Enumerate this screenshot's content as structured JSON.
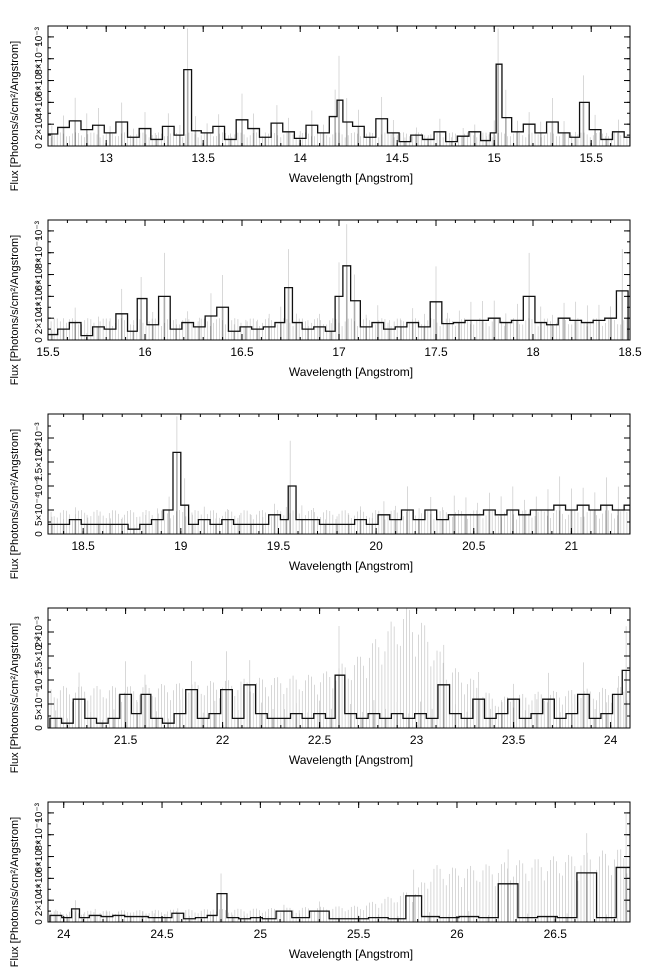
{
  "chart_data": [
    {
      "type": "line",
      "xlabel": "Wavelength [Angstrom]",
      "ylabel": "Flux [Photons/s/cm²/Angstrom]",
      "xlim": [
        12.7,
        15.7
      ],
      "ylim": [
        0,
        0.0011
      ],
      "xticks": [
        13,
        13.5,
        14,
        14.5,
        15,
        15.5
      ],
      "xtick_labels": [
        "13",
        "13.5",
        "14",
        "14.5",
        "15",
        "15.5"
      ],
      "yticks": [
        0,
        0.0002,
        0.0004,
        0.0006,
        0.0008,
        0.001
      ],
      "ytick_labels": [
        "0",
        "2×10⁻⁴",
        "4×10⁻⁴",
        "6×10⁻⁴",
        "8×10⁻⁴",
        "10⁻³"
      ],
      "background_error_level": 0.0001,
      "series": [
        {
          "x": [
            12.72,
            12.78,
            12.84,
            12.9,
            12.96,
            13.02,
            13.08,
            13.14,
            13.2,
            13.26,
            13.32,
            13.38,
            13.42,
            13.46,
            13.52,
            13.58,
            13.64,
            13.7,
            13.76,
            13.82,
            13.88,
            13.94,
            14.0,
            14.06,
            14.12,
            14.18,
            14.2,
            14.24,
            14.3,
            14.36,
            14.42,
            14.48,
            14.54,
            14.6,
            14.66,
            14.72,
            14.78,
            14.84,
            14.9,
            14.96,
            15.0,
            15.02,
            15.06,
            15.12,
            15.18,
            15.24,
            15.3,
            15.36,
            15.42,
            15.46,
            15.52,
            15.58,
            15.64,
            15.7
          ],
          "y": [
            0.00011,
            0.00017,
            0.00023,
            0.00015,
            0.00019,
            0.00012,
            0.00022,
            8e-05,
            0.00016,
            6e-05,
            0.00018,
            0.0001,
            0.0007,
            0.00014,
            0.00012,
            0.00018,
            6e-05,
            0.00024,
            0.00016,
            8e-05,
            0.00021,
            0.00013,
            7e-05,
            0.00019,
            0.00012,
            0.00027,
            0.00042,
            0.00022,
            0.00018,
            8e-05,
            0.00025,
            0.00012,
            4e-05,
            0.0001,
            6e-05,
            0.00013,
            4e-05,
            9e-05,
            0.00013,
            5e-05,
            0.00012,
            0.00075,
            0.00026,
            0.00013,
            0.0002,
            0.00012,
            0.00022,
            0.00012,
            8e-05,
            0.0004,
            0.00015,
            6e-05,
            0.00013,
            8e-05
          ]
        }
      ]
    },
    {
      "type": "line",
      "xlabel": "Wavelength [Angstrom]",
      "ylabel": "Flux [Photons/s/cm²/Angstrom]",
      "xlim": [
        15.5,
        18.5
      ],
      "ylim": [
        0,
        0.0011
      ],
      "xticks": [
        15.5,
        16,
        16.5,
        17,
        17.5,
        18,
        18.5
      ],
      "xtick_labels": [
        "15.5",
        "16",
        "16.5",
        "17",
        "17.5",
        "18",
        "18.5"
      ],
      "yticks": [
        0,
        0.0002,
        0.0004,
        0.0006,
        0.0008,
        0.001
      ],
      "ytick_labels": [
        "0",
        "2×10⁻⁴",
        "4×10⁻⁴",
        "6×10⁻⁴",
        "8×10⁻⁴",
        "10⁻³"
      ],
      "background_error_level": 0.00016,
      "series": [
        {
          "x": [
            15.52,
            15.58,
            15.64,
            15.7,
            15.76,
            15.82,
            15.88,
            15.94,
            15.98,
            16.04,
            16.1,
            16.16,
            16.22,
            16.28,
            16.34,
            16.4,
            16.46,
            16.52,
            16.58,
            16.64,
            16.7,
            16.74,
            16.78,
            16.84,
            16.9,
            16.96,
            17.0,
            17.04,
            17.08,
            17.14,
            17.2,
            17.26,
            17.32,
            17.38,
            17.44,
            17.5,
            17.56,
            17.62,
            17.68,
            17.74,
            17.8,
            17.86,
            17.92,
            17.98,
            18.04,
            18.1,
            18.16,
            18.22,
            18.28,
            18.34,
            18.4,
            18.46
          ],
          "y": [
            5e-05,
            0.0001,
            0.00016,
            4e-05,
            0.00012,
            0.0001,
            0.00024,
            8e-05,
            0.00038,
            0.00014,
            0.0004,
            0.0001,
            0.00016,
            0.00012,
            0.00022,
            0.0003,
            8e-05,
            0.00012,
            0.0001,
            0.00012,
            0.00016,
            0.00048,
            0.00016,
            0.0001,
            0.00012,
            8e-05,
            0.0004,
            0.00068,
            0.00036,
            0.00012,
            0.00016,
            0.0001,
            0.00012,
            0.00016,
            0.00012,
            0.00035,
            0.00015,
            0.00016,
            0.00018,
            0.00018,
            0.0002,
            0.00016,
            0.00018,
            0.0004,
            0.00016,
            0.00014,
            0.0002,
            0.00018,
            0.00016,
            0.00018,
            0.0002,
            0.00045
          ]
        }
      ]
    },
    {
      "type": "line",
      "xlabel": "Wavelength [Angstrom]",
      "ylabel": "Flux [Photons/s/cm²/Angstrom]",
      "xlim": [
        18.32,
        21.3
      ],
      "ylim": [
        0,
        0.0025
      ],
      "xticks": [
        18.5,
        19,
        19.5,
        20,
        20.5,
        21
      ],
      "xtick_labels": [
        "18.5",
        "19",
        "19.5",
        "20",
        "20.5",
        "21"
      ],
      "yticks": [
        0,
        0.0005,
        0.001,
        0.0015,
        0.002
      ],
      "ytick_labels": [
        "0",
        "5×10⁻⁴",
        "10⁻³",
        "1.5×10⁻³",
        "2×10⁻³"
      ],
      "background_error_level": 0.0004,
      "series": [
        {
          "x": [
            18.34,
            18.4,
            18.46,
            18.52,
            18.58,
            18.64,
            18.7,
            18.76,
            18.82,
            18.88,
            18.94,
            18.98,
            19.02,
            19.06,
            19.12,
            19.18,
            19.24,
            19.3,
            19.36,
            19.42,
            19.48,
            19.54,
            19.56,
            19.62,
            19.68,
            19.74,
            19.8,
            19.86,
            19.92,
            19.98,
            20.04,
            20.1,
            20.16,
            20.22,
            20.28,
            20.34,
            20.4,
            20.46,
            20.52,
            20.58,
            20.64,
            20.7,
            20.76,
            20.82,
            20.88,
            20.94,
            21.0,
            21.06,
            21.12,
            21.18,
            21.24,
            21.3
          ],
          "y": [
            0.0002,
            0.0002,
            0.0003,
            0.0002,
            0.0002,
            0.0002,
            0.0002,
            0.0001,
            0.0002,
            0.0003,
            0.0005,
            0.0017,
            0.0006,
            0.0002,
            0.0003,
            0.0002,
            0.0003,
            0.0002,
            0.0002,
            0.0002,
            0.0004,
            0.0003,
            0.001,
            0.0003,
            0.0003,
            0.0002,
            0.0002,
            0.0002,
            0.0003,
            0.0002,
            0.0004,
            0.0003,
            0.0005,
            0.0003,
            0.0005,
            0.0003,
            0.0004,
            0.0004,
            0.0004,
            0.0005,
            0.0004,
            0.0005,
            0.0004,
            0.0005,
            0.0005,
            0.0006,
            0.0005,
            0.0006,
            0.0005,
            0.0006,
            0.0005,
            0.0006
          ]
        }
      ]
    },
    {
      "type": "line",
      "xlabel": "Wavelength [Angstrom]",
      "ylabel": "Flux [Photons/s/cm²/Angstrom]",
      "xlim": [
        21.1,
        24.1
      ],
      "ylim": [
        0,
        0.0025
      ],
      "xticks": [
        21.5,
        22,
        22.5,
        23,
        23.5,
        24
      ],
      "xtick_labels": [
        "21.5",
        "22",
        "22.5",
        "23",
        "23.5",
        "24"
      ],
      "yticks": [
        0,
        0.0005,
        0.001,
        0.0015,
        0.002
      ],
      "ytick_labels": [
        "0",
        "5×10⁻⁴",
        "10⁻³",
        "1.5×10⁻³",
        "2×10⁻³"
      ],
      "background_error": {
        "x": [
          21.1,
          21.5,
          22.0,
          22.5,
          22.7,
          22.85,
          22.95,
          23.05,
          23.15,
          23.3,
          23.4,
          23.6,
          24.1
        ],
        "y": [
          0.0007,
          0.0007,
          0.0008,
          0.0009,
          0.0012,
          0.0017,
          0.0021,
          0.0017,
          0.0011,
          0.0008,
          0.0005,
          0.0006,
          0.0007
        ]
      },
      "series": [
        {
          "x": [
            21.14,
            21.2,
            21.26,
            21.32,
            21.38,
            21.44,
            21.5,
            21.56,
            21.6,
            21.66,
            21.72,
            21.78,
            21.84,
            21.9,
            21.96,
            22.02,
            22.08,
            22.14,
            22.2,
            22.26,
            22.32,
            22.38,
            22.44,
            22.5,
            22.56,
            22.6,
            22.66,
            22.72,
            22.78,
            22.84,
            22.9,
            22.96,
            23.02,
            23.08,
            23.14,
            23.2,
            23.26,
            23.32,
            23.38,
            23.44,
            23.5,
            23.56,
            23.62,
            23.68,
            23.74,
            23.8,
            23.86,
            23.92,
            23.98,
            24.04,
            24.08
          ],
          "y": [
            0.0002,
            0.0001,
            0.0006,
            0.0002,
            0.0001,
            0.0002,
            0.0007,
            0.0003,
            0.0007,
            0.0002,
            0.0001,
            0.0003,
            0.0008,
            0.0002,
            0.0003,
            0.0008,
            0.0002,
            0.0009,
            0.0003,
            0.0002,
            0.0002,
            0.0003,
            0.0002,
            0.0003,
            0.0002,
            0.0011,
            0.0003,
            0.0002,
            0.0003,
            0.0002,
            0.0003,
            0.0002,
            0.0003,
            0.0002,
            0.0009,
            0.0003,
            0.0002,
            0.0006,
            0.0002,
            0.0003,
            0.0006,
            0.0002,
            0.0003,
            0.0006,
            0.0002,
            0.0003,
            0.0007,
            0.0002,
            0.0003,
            0.0007,
            0.0012
          ]
        }
      ]
    },
    {
      "type": "line",
      "xlabel": "Wavelength [Angstrom]",
      "ylabel": "Flux [Photons/s/cm²/Angstrom]",
      "xlim": [
        23.92,
        26.88
      ],
      "ylim": [
        0,
        0.0011
      ],
      "xticks": [
        24,
        24.5,
        25,
        25.5,
        26,
        26.5
      ],
      "xtick_labels": [
        "24",
        "24.5",
        "25",
        "25.5",
        "26",
        "26.5"
      ],
      "yticks": [
        0,
        0.0002,
        0.0004,
        0.0006,
        0.0008,
        0.001
      ],
      "ytick_labels": [
        "0",
        "2×10⁻⁴",
        "4×10⁻⁴",
        "6×10⁻⁴",
        "8×10⁻⁴",
        "10⁻³"
      ],
      "background_error": {
        "x": [
          23.92,
          24.5,
          25.0,
          25.5,
          25.8,
          25.88,
          26.0,
          26.3,
          26.6,
          26.88
        ],
        "y": [
          8e-05,
          9e-05,
          0.0001,
          0.00012,
          0.00025,
          0.00042,
          0.0004,
          0.00045,
          0.0005,
          0.00055
        ]
      },
      "series": [
        {
          "x": [
            23.96,
            24.02,
            24.06,
            24.1,
            24.16,
            24.22,
            24.28,
            24.34,
            24.4,
            24.46,
            24.52,
            24.58,
            24.64,
            24.7,
            24.76,
            24.8,
            24.86,
            24.92,
            24.98,
            25.04,
            25.12,
            25.2,
            25.3,
            25.4,
            25.5,
            25.6,
            25.7,
            25.78,
            25.86,
            25.96,
            26.06,
            26.16,
            26.26,
            26.36,
            26.46,
            26.56,
            26.66,
            26.76,
            26.86
          ],
          "y": [
            6e-05,
            4e-05,
            0.00012,
            4e-05,
            6e-05,
            5e-05,
            6e-05,
            5e-05,
            5e-05,
            4e-05,
            4e-05,
            8e-05,
            3e-05,
            4e-05,
            6e-05,
            0.00026,
            4e-05,
            3e-05,
            4e-05,
            3e-05,
            0.0001,
            4e-05,
            0.0001,
            3e-05,
            3e-05,
            4e-05,
            3e-05,
            0.00024,
            5e-05,
            4e-05,
            5e-05,
            4e-05,
            0.00035,
            4e-05,
            5e-05,
            4e-05,
            0.00045,
            4e-05,
            0.0005
          ]
        }
      ]
    }
  ]
}
